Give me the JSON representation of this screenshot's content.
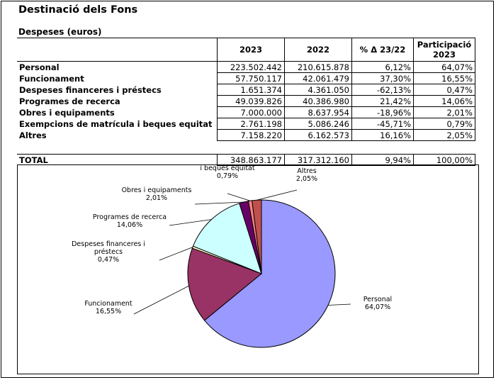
{
  "title": "Destinació dels Fons",
  "subtitle": "Despeses (euros)",
  "table": {
    "headers": [
      "2023",
      "2022",
      "% Δ 23/22",
      "Participació 2023"
    ],
    "rows": [
      {
        "label": "Personal",
        "v2023": "223.502.442",
        "v2022": "210.615.878",
        "delta": "6,12%",
        "share": "64,07%"
      },
      {
        "label": "Funcionament",
        "v2023": "57.750.117",
        "v2022": "42.061.479",
        "delta": "37,30%",
        "share": "16,55%"
      },
      {
        "label": "Despeses financeres i préstecs",
        "v2023": "1.651.374",
        "v2022": "4.361.050",
        "delta": "-62,13%",
        "share": "0,47%"
      },
      {
        "label": "Programes de recerca",
        "v2023": "49.039.826",
        "v2022": "40.386.980",
        "delta": "21,42%",
        "share": "14,06%"
      },
      {
        "label": "Obres i equipaments",
        "v2023": "7.000.000",
        "v2022": "8.637.954",
        "delta": "-18,96%",
        "share": "2,01%"
      },
      {
        "label": "Exempcions de matrícula i beques equitat",
        "v2023": "2.761.198",
        "v2022": "5.086.246",
        "delta": "-45,71%",
        "share": "0,79%"
      },
      {
        "label": "Altres",
        "v2023": "7.158.220",
        "v2022": "6.162.573",
        "delta": "16,16%",
        "share": "2,05%"
      }
    ],
    "total": {
      "label": "TOTAL",
      "v2023": "348.863.177",
      "v2022": "317.312.160",
      "delta": "9,94%",
      "share": "100,00%"
    }
  },
  "chart_data": {
    "type": "pie",
    "slices": [
      {
        "name": "Personal",
        "value": 64.07,
        "label_lines": [
          "Personal",
          "64,07%"
        ],
        "color": "#9999ff"
      },
      {
        "name": "Funcionament",
        "value": 16.55,
        "label_lines": [
          "Funcionament",
          "16,55%"
        ],
        "color": "#993366"
      },
      {
        "name": "Despeses financeres i préstecs",
        "value": 0.47,
        "label_lines": [
          "Despeses financeres i",
          "préstecs",
          "0,47%"
        ],
        "color": "#ffffcc"
      },
      {
        "name": "Programes de recerca",
        "value": 14.06,
        "label_lines": [
          "Programes de recerca",
          "14,06%"
        ],
        "color": "#ccffff"
      },
      {
        "name": "Obres i equipaments",
        "value": 2.01,
        "label_lines": [
          "Obres i equipaments",
          "2,01%"
        ],
        "color": "#660066"
      },
      {
        "name": "Exempcions de matrícula i beques equitat",
        "value": 0.79,
        "label_lines": [
          "Exempcions de matrícula",
          "i beques equitat",
          "0,79%"
        ],
        "color": "#ff8080"
      },
      {
        "name": "Altres",
        "value": 2.05,
        "label_lines": [
          "Altres",
          "2,05%"
        ],
        "color": "#c0504d"
      }
    ],
    "start": "top",
    "direction": "clockwise"
  }
}
